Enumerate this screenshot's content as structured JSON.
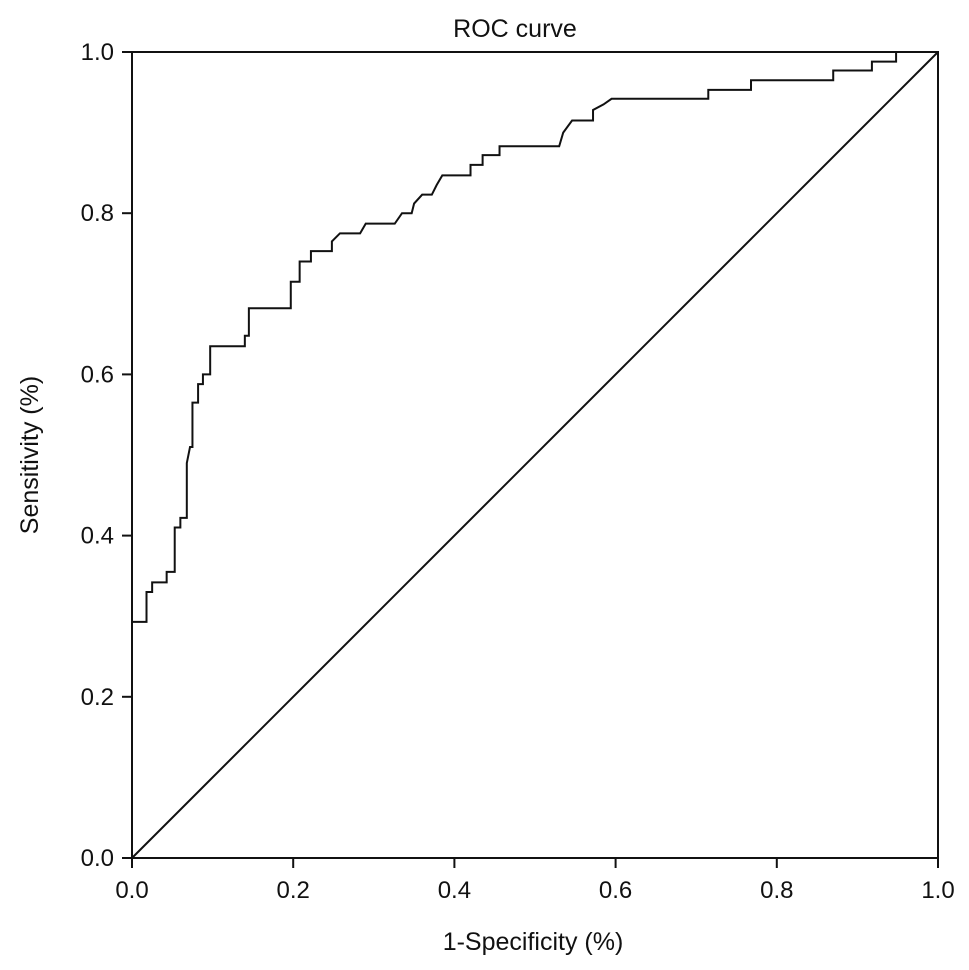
{
  "chart_data": {
    "type": "line",
    "title": "ROC curve",
    "xlabel": "1-Specificity (%)",
    "ylabel": "Sensitivity (%)",
    "xlim": [
      0,
      1
    ],
    "ylim": [
      0,
      1
    ],
    "xticks": [
      0,
      0.2,
      0.4,
      0.6,
      0.8,
      1.0
    ],
    "xtick_labels": [
      "0.0",
      "0.2",
      "0.4",
      "0.6",
      "0.8",
      "1.0"
    ],
    "yticks": [
      0,
      0.2,
      0.4,
      0.6,
      0.8,
      1.0
    ],
    "ytick_labels": [
      "0.0",
      "0.2",
      "0.4",
      "0.6",
      "0.8",
      "1.0"
    ],
    "grid": false,
    "color": "#111111",
    "series": [
      {
        "x": [
          0,
          0,
          0.018,
          0.018,
          0.025,
          0.025,
          0.043,
          0.043,
          0.053,
          0.053,
          0.06,
          0.06,
          0.068,
          0.068,
          0.072,
          0.075,
          0.075,
          0.082,
          0.082,
          0.088,
          0.088,
          0.097,
          0.097,
          0.14,
          0.14,
          0.145,
          0.145,
          0.197,
          0.197,
          0.208,
          0.208,
          0.222,
          0.222,
          0.248,
          0.248,
          0.258,
          0.283,
          0.29,
          0.326,
          0.335,
          0.347,
          0.35,
          0.36,
          0.372,
          0.378,
          0.385,
          0.42,
          0.42,
          0.435,
          0.435,
          0.456,
          0.456,
          0.53,
          0.535,
          0.546,
          0.572,
          0.572,
          0.585,
          0.595,
          0.715,
          0.715,
          0.768,
          0.768,
          0.87,
          0.87,
          0.918,
          0.918,
          0.948,
          0.948,
          1.0
        ],
        "y": [
          0,
          0.293,
          0.293,
          0.33,
          0.33,
          0.342,
          0.342,
          0.355,
          0.355,
          0.41,
          0.41,
          0.422,
          0.422,
          0.49,
          0.51,
          0.51,
          0.565,
          0.565,
          0.588,
          0.588,
          0.6,
          0.6,
          0.635,
          0.635,
          0.648,
          0.648,
          0.682,
          0.682,
          0.715,
          0.715,
          0.74,
          0.74,
          0.753,
          0.753,
          0.765,
          0.775,
          0.775,
          0.787,
          0.787,
          0.8,
          0.8,
          0.812,
          0.823,
          0.823,
          0.835,
          0.847,
          0.847,
          0.86,
          0.86,
          0.872,
          0.872,
          0.883,
          0.883,
          0.9,
          0.915,
          0.915,
          0.928,
          0.935,
          0.942,
          0.942,
          0.953,
          0.953,
          0.965,
          0.965,
          0.977,
          0.977,
          0.988,
          0.988,
          1.0,
          1.0
        ]
      },
      {
        "x": [
          0,
          1
        ],
        "y": [
          0,
          1
        ]
      }
    ]
  }
}
